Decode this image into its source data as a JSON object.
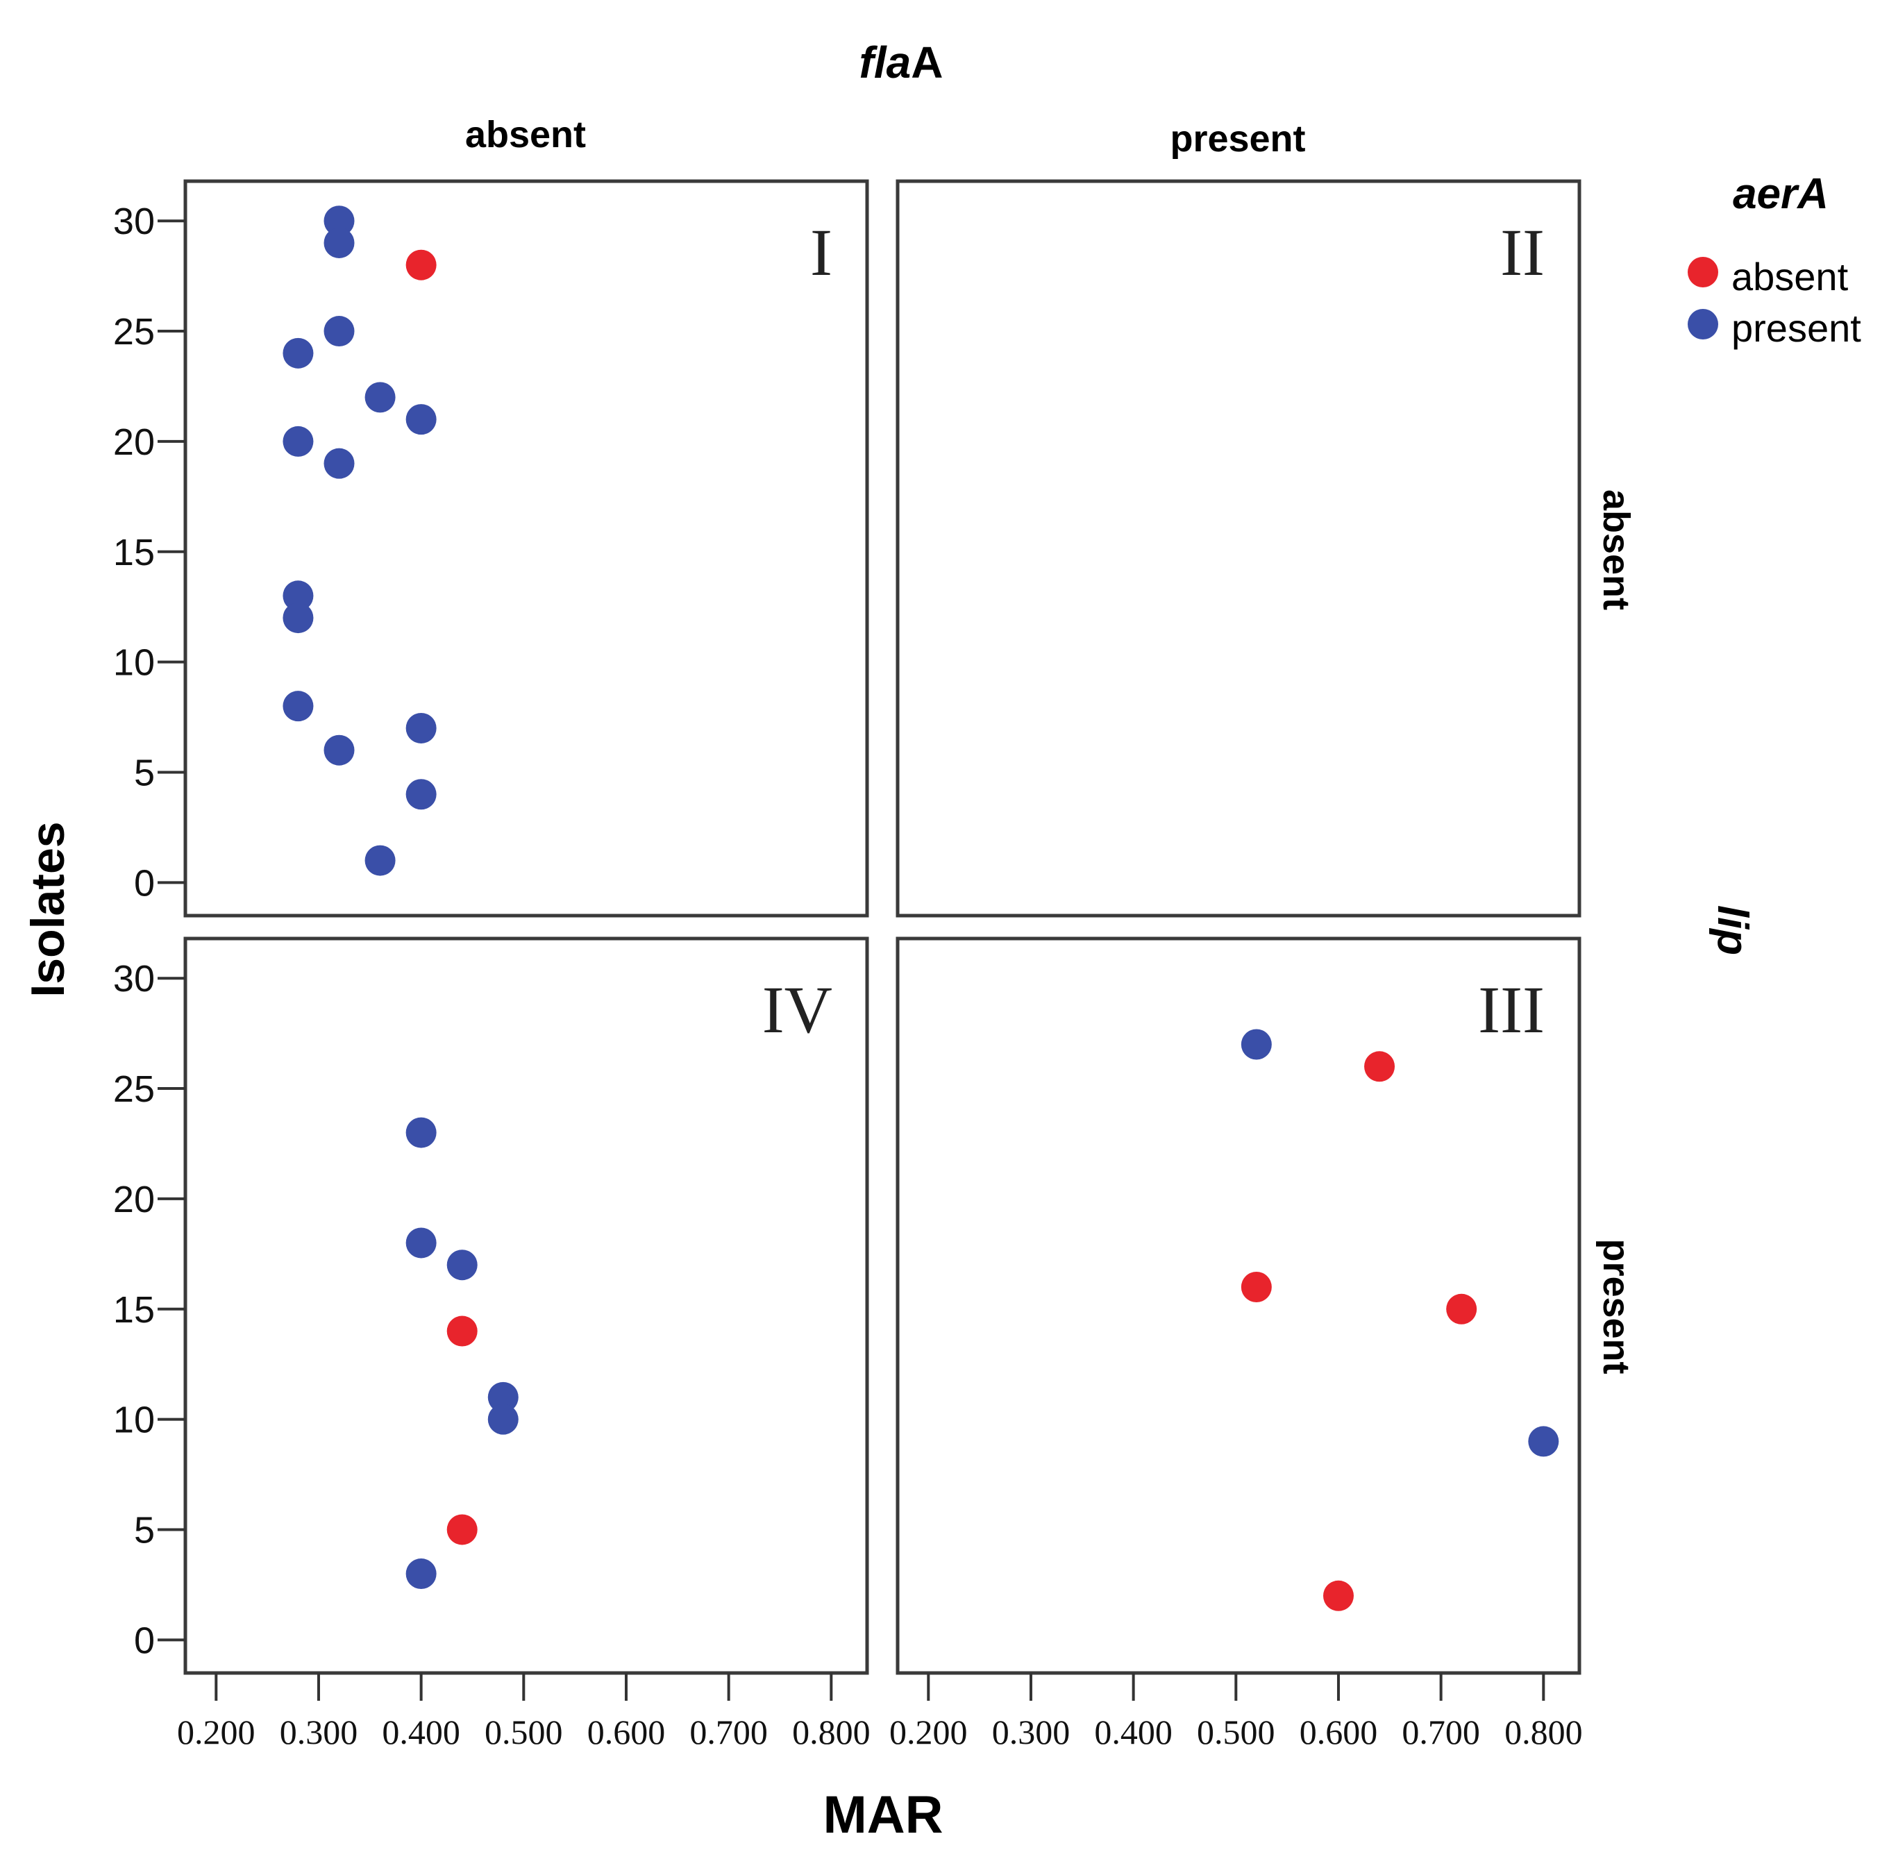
{
  "chart_data": {
    "type": "scatter",
    "title_parts": [
      {
        "text": "fla",
        "italic": true
      },
      {
        "text": "A",
        "italic": false
      }
    ],
    "col_labels": [
      "absent",
      "present"
    ],
    "row_labels": [
      "absent",
      "present"
    ],
    "row_title": "lip",
    "xlabel": "MAR",
    "ylabel": "Isolates",
    "xlim": [
      0.17,
      0.835
    ],
    "ylim": [
      -1.5,
      31.8
    ],
    "xticks": [
      0.2,
      0.3,
      0.4,
      0.5,
      0.6,
      0.7,
      0.8
    ],
    "xtick_labels": [
      "0.200",
      "0.300",
      "0.400",
      "0.500",
      "0.600",
      "0.700",
      "0.800"
    ],
    "yticks": [
      0,
      5,
      10,
      15,
      20,
      25,
      30
    ],
    "ytick_labels": [
      "0",
      "5",
      "10",
      "15",
      "20",
      "25",
      "30"
    ],
    "legend": {
      "title": "aerA",
      "entries": [
        {
          "label": "absent",
          "color": "#e8242c"
        },
        {
          "label": "present",
          "color": "#3a4fa8"
        }
      ]
    },
    "panels": [
      {
        "id": "I",
        "label": "I",
        "row": 0,
        "col": 0,
        "points": [
          {
            "x": 0.32,
            "y": 30,
            "aerA": "present"
          },
          {
            "x": 0.32,
            "y": 29,
            "aerA": "present"
          },
          {
            "x": 0.4,
            "y": 28,
            "aerA": "absent"
          },
          {
            "x": 0.32,
            "y": 25,
            "aerA": "present"
          },
          {
            "x": 0.28,
            "y": 24,
            "aerA": "present"
          },
          {
            "x": 0.36,
            "y": 22,
            "aerA": "present"
          },
          {
            "x": 0.4,
            "y": 21,
            "aerA": "present"
          },
          {
            "x": 0.28,
            "y": 20,
            "aerA": "present"
          },
          {
            "x": 0.32,
            "y": 19,
            "aerA": "present"
          },
          {
            "x": 0.28,
            "y": 13,
            "aerA": "present"
          },
          {
            "x": 0.28,
            "y": 12,
            "aerA": "present"
          },
          {
            "x": 0.28,
            "y": 8,
            "aerA": "present"
          },
          {
            "x": 0.4,
            "y": 7,
            "aerA": "present"
          },
          {
            "x": 0.32,
            "y": 6,
            "aerA": "present"
          },
          {
            "x": 0.4,
            "y": 4,
            "aerA": "present"
          },
          {
            "x": 0.36,
            "y": 1,
            "aerA": "present"
          }
        ]
      },
      {
        "id": "II",
        "label": "II",
        "row": 0,
        "col": 1,
        "points": []
      },
      {
        "id": "IV",
        "label": "IV",
        "row": 1,
        "col": 0,
        "points": [
          {
            "x": 0.4,
            "y": 23,
            "aerA": "present"
          },
          {
            "x": 0.4,
            "y": 18,
            "aerA": "present"
          },
          {
            "x": 0.44,
            "y": 17,
            "aerA": "present"
          },
          {
            "x": 0.44,
            "y": 14,
            "aerA": "absent"
          },
          {
            "x": 0.48,
            "y": 11,
            "aerA": "present"
          },
          {
            "x": 0.48,
            "y": 10,
            "aerA": "present"
          },
          {
            "x": 0.44,
            "y": 5,
            "aerA": "absent"
          },
          {
            "x": 0.4,
            "y": 3,
            "aerA": "present"
          }
        ]
      },
      {
        "id": "III",
        "label": "III",
        "row": 1,
        "col": 1,
        "points": [
          {
            "x": 0.52,
            "y": 27,
            "aerA": "present"
          },
          {
            "x": 0.64,
            "y": 26,
            "aerA": "absent"
          },
          {
            "x": 0.52,
            "y": 16,
            "aerA": "absent"
          },
          {
            "x": 0.72,
            "y": 15,
            "aerA": "absent"
          },
          {
            "x": 0.8,
            "y": 9,
            "aerA": "present"
          },
          {
            "x": 0.6,
            "y": 2,
            "aerA": "absent"
          }
        ]
      }
    ]
  }
}
